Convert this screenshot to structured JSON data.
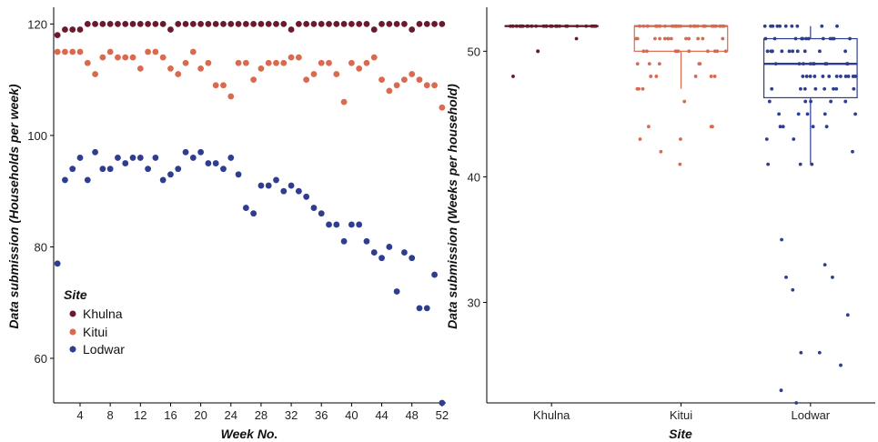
{
  "colors": {
    "Khulna": "#6b1a2e",
    "Kitui": "#d9694f",
    "Lodwar": "#2e3d8f"
  },
  "chart_data": [
    {
      "type": "scatter",
      "xlabel": "Week No.",
      "ylabel": "Data submission (Households per week)",
      "xlim": [
        0.5,
        52.5
      ],
      "ylim": [
        52,
        123
      ],
      "xticks": [
        4,
        8,
        12,
        16,
        20,
        24,
        28,
        32,
        36,
        40,
        44,
        48,
        52
      ],
      "yticks": [
        60,
        80,
        100,
        120
      ],
      "legend": {
        "title": "Site",
        "placement": "bottom-left",
        "entries": [
          "Khulna",
          "Kitui",
          "Lodwar"
        ]
      },
      "x": [
        1,
        2,
        3,
        4,
        5,
        6,
        7,
        8,
        9,
        10,
        11,
        12,
        13,
        14,
        15,
        16,
        17,
        18,
        19,
        20,
        21,
        22,
        23,
        24,
        25,
        26,
        27,
        28,
        29,
        30,
        31,
        32,
        33,
        34,
        35,
        36,
        37,
        38,
        39,
        40,
        41,
        42,
        43,
        44,
        45,
        46,
        47,
        48,
        49,
        50,
        51,
        52
      ],
      "series": [
        {
          "name": "Khulna",
          "values": [
            118,
            119,
            119,
            119,
            120,
            120,
            120,
            120,
            120,
            120,
            120,
            120,
            120,
            120,
            120,
            119,
            120,
            120,
            120,
            120,
            120,
            120,
            120,
            120,
            120,
            120,
            120,
            120,
            120,
            120,
            120,
            119,
            120,
            120,
            120,
            120,
            120,
            120,
            120,
            120,
            120,
            120,
            119,
            120,
            120,
            120,
            120,
            119,
            120,
            120,
            120,
            120
          ]
        },
        {
          "name": "Kitui",
          "values": [
            115,
            115,
            115,
            115,
            113,
            111,
            114,
            115,
            114,
            114,
            114,
            112,
            115,
            115,
            114,
            112,
            111,
            113,
            115,
            112,
            113,
            109,
            109,
            107,
            113,
            113,
            110,
            112,
            113,
            113,
            113,
            114,
            114,
            110,
            111,
            113,
            113,
            111,
            106,
            113,
            112,
            113,
            114,
            110,
            108,
            109,
            110,
            111,
            110,
            109,
            109,
            105
          ]
        },
        {
          "name": "Lodwar",
          "values": [
            77,
            92,
            94,
            96,
            92,
            97,
            94,
            94,
            96,
            95,
            96,
            96,
            94,
            96,
            92,
            93,
            94,
            97,
            96,
            97,
            95,
            95,
            94,
            96,
            93,
            87,
            86,
            91,
            91,
            92,
            90,
            91,
            90,
            89,
            87,
            86,
            84,
            84,
            81,
            84,
            84,
            81,
            79,
            78,
            80,
            72,
            79,
            78,
            69,
            69,
            75,
            52
          ]
        }
      ]
    },
    {
      "type": "box",
      "xlabel": "Site",
      "ylabel": "Data submission (Weeks per household)",
      "ylim": [
        22,
        53.5
      ],
      "yticks": [
        30,
        40,
        50
      ],
      "categories": [
        "Khulna",
        "Kitui",
        "Lodwar"
      ],
      "boxes": [
        {
          "name": "Khulna",
          "q1": 52,
          "median": 52,
          "q3": 52,
          "whisker_low": 52,
          "whisker_high": 52,
          "points": [
            52,
            52,
            52,
            52,
            52,
            52,
            52,
            52,
            52,
            52,
            52,
            52,
            52,
            52,
            52,
            52,
            52,
            52,
            52,
            52,
            52,
            52,
            52,
            52,
            52,
            52,
            52,
            52,
            52,
            52,
            52,
            52,
            52,
            52,
            52,
            52,
            52,
            52,
            52,
            51,
            50,
            50,
            48
          ]
        },
        {
          "name": "Kitui",
          "q1": 50,
          "median": 52,
          "q3": 52,
          "whisker_low": 47,
          "whisker_high": 52,
          "points": [
            52,
            52,
            52,
            52,
            52,
            52,
            52,
            52,
            52,
            52,
            52,
            52,
            52,
            52,
            52,
            52,
            52,
            52,
            52,
            52,
            52,
            52,
            52,
            52,
            52,
            52,
            52,
            52,
            52,
            52,
            52,
            52,
            52,
            52,
            52,
            52,
            52,
            51,
            51,
            51,
            51,
            51,
            51,
            51,
            51,
            51,
            51,
            51,
            51,
            51,
            50,
            50,
            50,
            50,
            50,
            50,
            50,
            50,
            50,
            50,
            49,
            49,
            49,
            49,
            49,
            48,
            48,
            48,
            48,
            48,
            47,
            47,
            47,
            46,
            44,
            44,
            44,
            43,
            43,
            42,
            41
          ]
        },
        {
          "name": "Lodwar",
          "q1": 46.3,
          "median": 49,
          "q3": 51,
          "whisker_low": 41,
          "whisker_high": 52,
          "points": [
            52,
            52,
            52,
            52,
            52,
            52,
            52,
            52,
            52,
            52,
            51,
            51,
            51,
            51,
            51,
            51,
            51,
            51,
            51,
            51,
            51,
            51,
            50,
            50,
            50,
            50,
            50,
            50,
            50,
            50,
            50,
            50,
            50,
            49,
            49,
            49,
            49,
            49,
            49,
            49,
            49,
            49,
            49,
            49,
            48,
            48,
            48,
            48,
            48,
            48,
            48,
            48,
            48,
            48,
            48,
            48,
            47,
            47,
            47,
            47,
            47,
            47,
            47,
            47,
            46,
            46,
            46,
            46,
            46,
            45,
            45,
            45,
            45,
            45,
            44,
            44,
            44,
            44,
            43,
            43,
            42,
            41,
            41,
            41,
            35,
            33,
            32,
            32,
            31,
            29,
            26,
            26,
            25,
            23,
            22
          ]
        }
      ]
    }
  ]
}
